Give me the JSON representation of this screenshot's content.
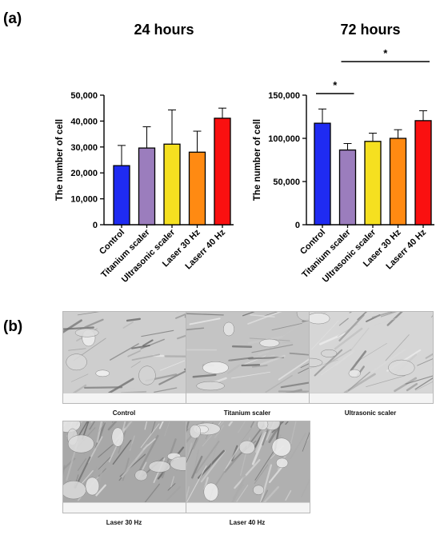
{
  "figure": {
    "panel_a_label": "(a)",
    "panel_b_label": "(b)",
    "bar_colors": [
      "#1f2bf2",
      "#9b7dbd",
      "#f5e020",
      "#ff8a12",
      "#fa1010"
    ]
  },
  "chart_data": [
    {
      "type": "bar",
      "title": "24 hours",
      "ylabel": "The number of cell",
      "categories": [
        "Control",
        "Titanium scaler",
        "Ultrasonic scaler",
        "Laser 30 Hz",
        "Laserr 40 Hz"
      ],
      "values": [
        22800,
        29600,
        31100,
        28000,
        41100
      ],
      "errors": [
        7800,
        8200,
        13200,
        8100,
        3900
      ],
      "ylim": [
        0,
        50000
      ],
      "yticks": [
        0,
        10000,
        20000,
        30000,
        40000,
        50000
      ],
      "ytick_labels": [
        "0",
        "10,000",
        "20,000",
        "30,000",
        "40,000",
        "50,000"
      ],
      "significance": []
    },
    {
      "type": "bar",
      "title": "72 hours",
      "ylabel": "The number of cell",
      "categories": [
        "Control",
        "Titanium scaler",
        "Ultrasonic scaler",
        "Laser 30 Hz",
        "Laserr 40 Hz"
      ],
      "values": [
        117500,
        86500,
        96500,
        100000,
        120500
      ],
      "errors": [
        16500,
        7500,
        9500,
        10000,
        11500
      ],
      "ylim": [
        0,
        150000
      ],
      "yticks": [
        0,
        50000,
        100000,
        150000
      ],
      "ytick_labels": [
        "0",
        "50,000",
        "100,000",
        "150,000"
      ],
      "significance": [
        {
          "from": 0,
          "to": 1,
          "label": "*"
        },
        {
          "from": 1,
          "to": 4,
          "label": "*"
        }
      ]
    }
  ],
  "micrographs": [
    {
      "label": "Control"
    },
    {
      "label": "Titanium scaler"
    },
    {
      "label": "Ultrasonic scaler"
    },
    {
      "label": "Laser 30 Hz"
    },
    {
      "label": "Laser 40 Hz"
    }
  ]
}
